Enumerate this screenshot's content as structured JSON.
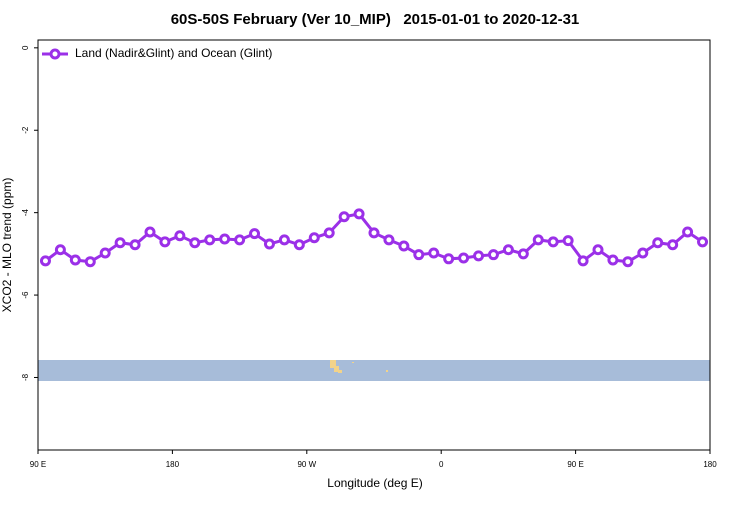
{
  "chart_data": {
    "type": "line",
    "title": "60S-50S February (Ver 10_MIP)   2015-01-01 to 2020-12-31",
    "x_label": "Longitude (deg E)",
    "y_label": "XCO2 - MLO trend (ppm)",
    "x": [
      95,
      105,
      115,
      125,
      135,
      145,
      155,
      165,
      175,
      185,
      195,
      205,
      215,
      225,
      235,
      245,
      255,
      265,
      275,
      285,
      295,
      305,
      315,
      325,
      335,
      345,
      355,
      365,
      375,
      385,
      395,
      405,
      415,
      425,
      435,
      445,
      455,
      465,
      475,
      485,
      495,
      505,
      515,
      525,
      535
    ],
    "series": [
      {
        "name": "Land (Nadir&Glint) and Ocean (Glint)",
        "color": "#9b30e8",
        "values": [
          -5.17,
          -4.9,
          -5.15,
          -5.19,
          -4.98,
          -4.73,
          -4.78,
          -4.47,
          -4.71,
          -4.56,
          -4.73,
          -4.66,
          -4.64,
          -4.66,
          -4.51,
          -4.76,
          -4.66,
          -4.78,
          -4.61,
          -4.49,
          -4.1,
          -4.03,
          -4.49,
          -4.66,
          -4.81,
          -5.02,
          -4.98,
          -5.12,
          -5.1,
          -5.05,
          -5.02,
          -4.9,
          -5.0,
          -4.66,
          -4.71,
          -4.68,
          -5.17,
          -4.9,
          -5.15,
          -5.19,
          -4.98,
          -4.73,
          -4.78,
          -4.47,
          -4.71
        ]
      }
    ],
    "xlim": [
      90,
      540
    ],
    "xticks": [
      {
        "value": 90,
        "label": "90 E"
      },
      180,
      {
        "value": 270,
        "label": "90 W"
      },
      {
        "value": 360,
        "label": "0"
      },
      {
        "value": 450,
        "label": "90 E"
      },
      {
        "value": 540,
        "label": "180"
      }
    ],
    "ylim": [
      -9.76,
      0.19
    ],
    "yticks": [
      0,
      -2,
      -4,
      -6,
      -8
    ],
    "legend": "top-left"
  }
}
